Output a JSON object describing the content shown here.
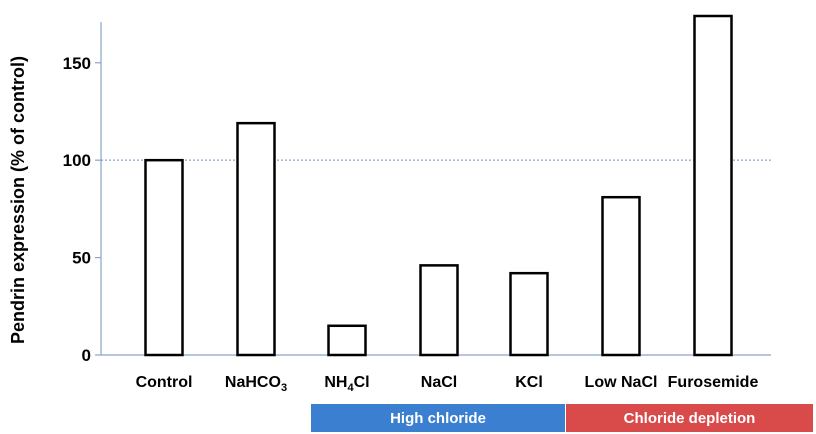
{
  "chart_data": {
    "type": "bar",
    "categories": [
      "Control",
      "NaHCO3",
      "NH4Cl",
      "NaCl",
      "KCl",
      "Low NaCl",
      "Furosemide"
    ],
    "category_labels": [
      {
        "main": "Control",
        "sub": "",
        "tail": ""
      },
      {
        "main": "NaHCO",
        "sub": "3",
        "tail": ""
      },
      {
        "main": "NH",
        "sub": "4",
        "tail": "Cl"
      },
      {
        "main": "NaCl",
        "sub": "",
        "tail": ""
      },
      {
        "main": "KCl",
        "sub": "",
        "tail": ""
      },
      {
        "main": "Low NaCl",
        "sub": "",
        "tail": ""
      },
      {
        "main": "Furosemide",
        "sub": "",
        "tail": ""
      }
    ],
    "values": [
      100,
      119,
      15,
      46,
      42,
      81,
      174
    ],
    "title": "",
    "xlabel": "",
    "ylabel": "Pendrin expression (% of control)",
    "ylim": [
      0,
      174
    ],
    "yticks": [
      0,
      50,
      100,
      150
    ],
    "reference_line": {
      "value": 100,
      "style": "dotted",
      "color": "#6a8fc7"
    },
    "bar_fill": "#ffffff",
    "bar_edge": "#000000",
    "grid": false,
    "legend": "none",
    "groups": [
      {
        "label": "High chloride",
        "categories": [
          "NH4Cl",
          "NaCl",
          "KCl"
        ],
        "color": "#3b7fd0"
      },
      {
        "label": "Chloride depletion",
        "categories": [
          "Low NaCl",
          "Furosemide"
        ],
        "color": "#d94a4a"
      }
    ]
  }
}
